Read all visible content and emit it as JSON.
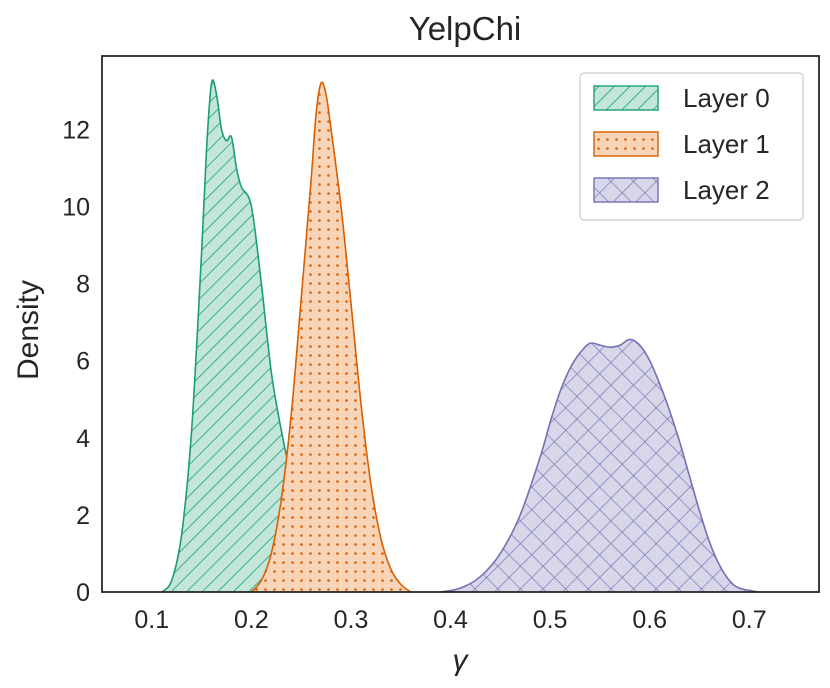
{
  "chart_data": {
    "type": "area",
    "title": "YelpChi",
    "xlabel": "γ",
    "ylabel": "Density",
    "xlim": [
      0.05,
      0.77
    ],
    "ylim": [
      0,
      13.9
    ],
    "xticks": [
      0.1,
      0.2,
      0.3,
      0.4,
      0.5,
      0.6,
      0.7
    ],
    "yticks": [
      0,
      2,
      4,
      6,
      8,
      10,
      12
    ],
    "grid": false,
    "legend_position": "top-right",
    "series": [
      {
        "name": "Layer 0",
        "color": "#1b9e77",
        "hatch": "diagonal",
        "points": [
          [
            0.11,
            0
          ],
          [
            0.12,
            0.3
          ],
          [
            0.13,
            1.5
          ],
          [
            0.14,
            4.2
          ],
          [
            0.15,
            8.8
          ],
          [
            0.155,
            11.5
          ],
          [
            0.16,
            13.2
          ],
          [
            0.165,
            12.9
          ],
          [
            0.17,
            12.0
          ],
          [
            0.175,
            11.7
          ],
          [
            0.18,
            11.8
          ],
          [
            0.185,
            11.0
          ],
          [
            0.19,
            10.5
          ],
          [
            0.2,
            10.0
          ],
          [
            0.21,
            8.0
          ],
          [
            0.22,
            5.7
          ],
          [
            0.23,
            4.2
          ],
          [
            0.24,
            3.0
          ],
          [
            0.25,
            2.1
          ],
          [
            0.26,
            1.3
          ],
          [
            0.27,
            0.7
          ],
          [
            0.28,
            0.3
          ],
          [
            0.3,
            0
          ]
        ]
      },
      {
        "name": "Layer 1",
        "color": "#d95f02",
        "hatch": "dots",
        "points": [
          [
            0.2,
            0
          ],
          [
            0.21,
            0.3
          ],
          [
            0.22,
            1.0
          ],
          [
            0.23,
            2.4
          ],
          [
            0.24,
            4.6
          ],
          [
            0.25,
            7.6
          ],
          [
            0.26,
            10.7
          ],
          [
            0.265,
            12.4
          ],
          [
            0.27,
            13.2
          ],
          [
            0.275,
            12.9
          ],
          [
            0.28,
            12.0
          ],
          [
            0.29,
            10.0
          ],
          [
            0.3,
            7.5
          ],
          [
            0.31,
            4.9
          ],
          [
            0.32,
            2.8
          ],
          [
            0.33,
            1.4
          ],
          [
            0.34,
            0.6
          ],
          [
            0.35,
            0.2
          ],
          [
            0.36,
            0
          ]
        ]
      },
      {
        "name": "Layer 2",
        "color": "#7570b3",
        "hatch": "crosshatch",
        "points": [
          [
            0.39,
            0
          ],
          [
            0.41,
            0.1
          ],
          [
            0.43,
            0.4
          ],
          [
            0.45,
            1.0
          ],
          [
            0.47,
            2.0
          ],
          [
            0.49,
            3.5
          ],
          [
            0.5,
            4.4
          ],
          [
            0.51,
            5.2
          ],
          [
            0.52,
            5.8
          ],
          [
            0.53,
            6.2
          ],
          [
            0.54,
            6.45
          ],
          [
            0.55,
            6.4
          ],
          [
            0.56,
            6.35
          ],
          [
            0.57,
            6.4
          ],
          [
            0.58,
            6.55
          ],
          [
            0.59,
            6.4
          ],
          [
            0.6,
            6.0
          ],
          [
            0.61,
            5.4
          ],
          [
            0.62,
            4.7
          ],
          [
            0.63,
            3.9
          ],
          [
            0.64,
            3.0
          ],
          [
            0.65,
            2.1
          ],
          [
            0.66,
            1.3
          ],
          [
            0.67,
            0.7
          ],
          [
            0.68,
            0.3
          ],
          [
            0.69,
            0.1
          ],
          [
            0.71,
            0
          ]
        ]
      }
    ]
  }
}
